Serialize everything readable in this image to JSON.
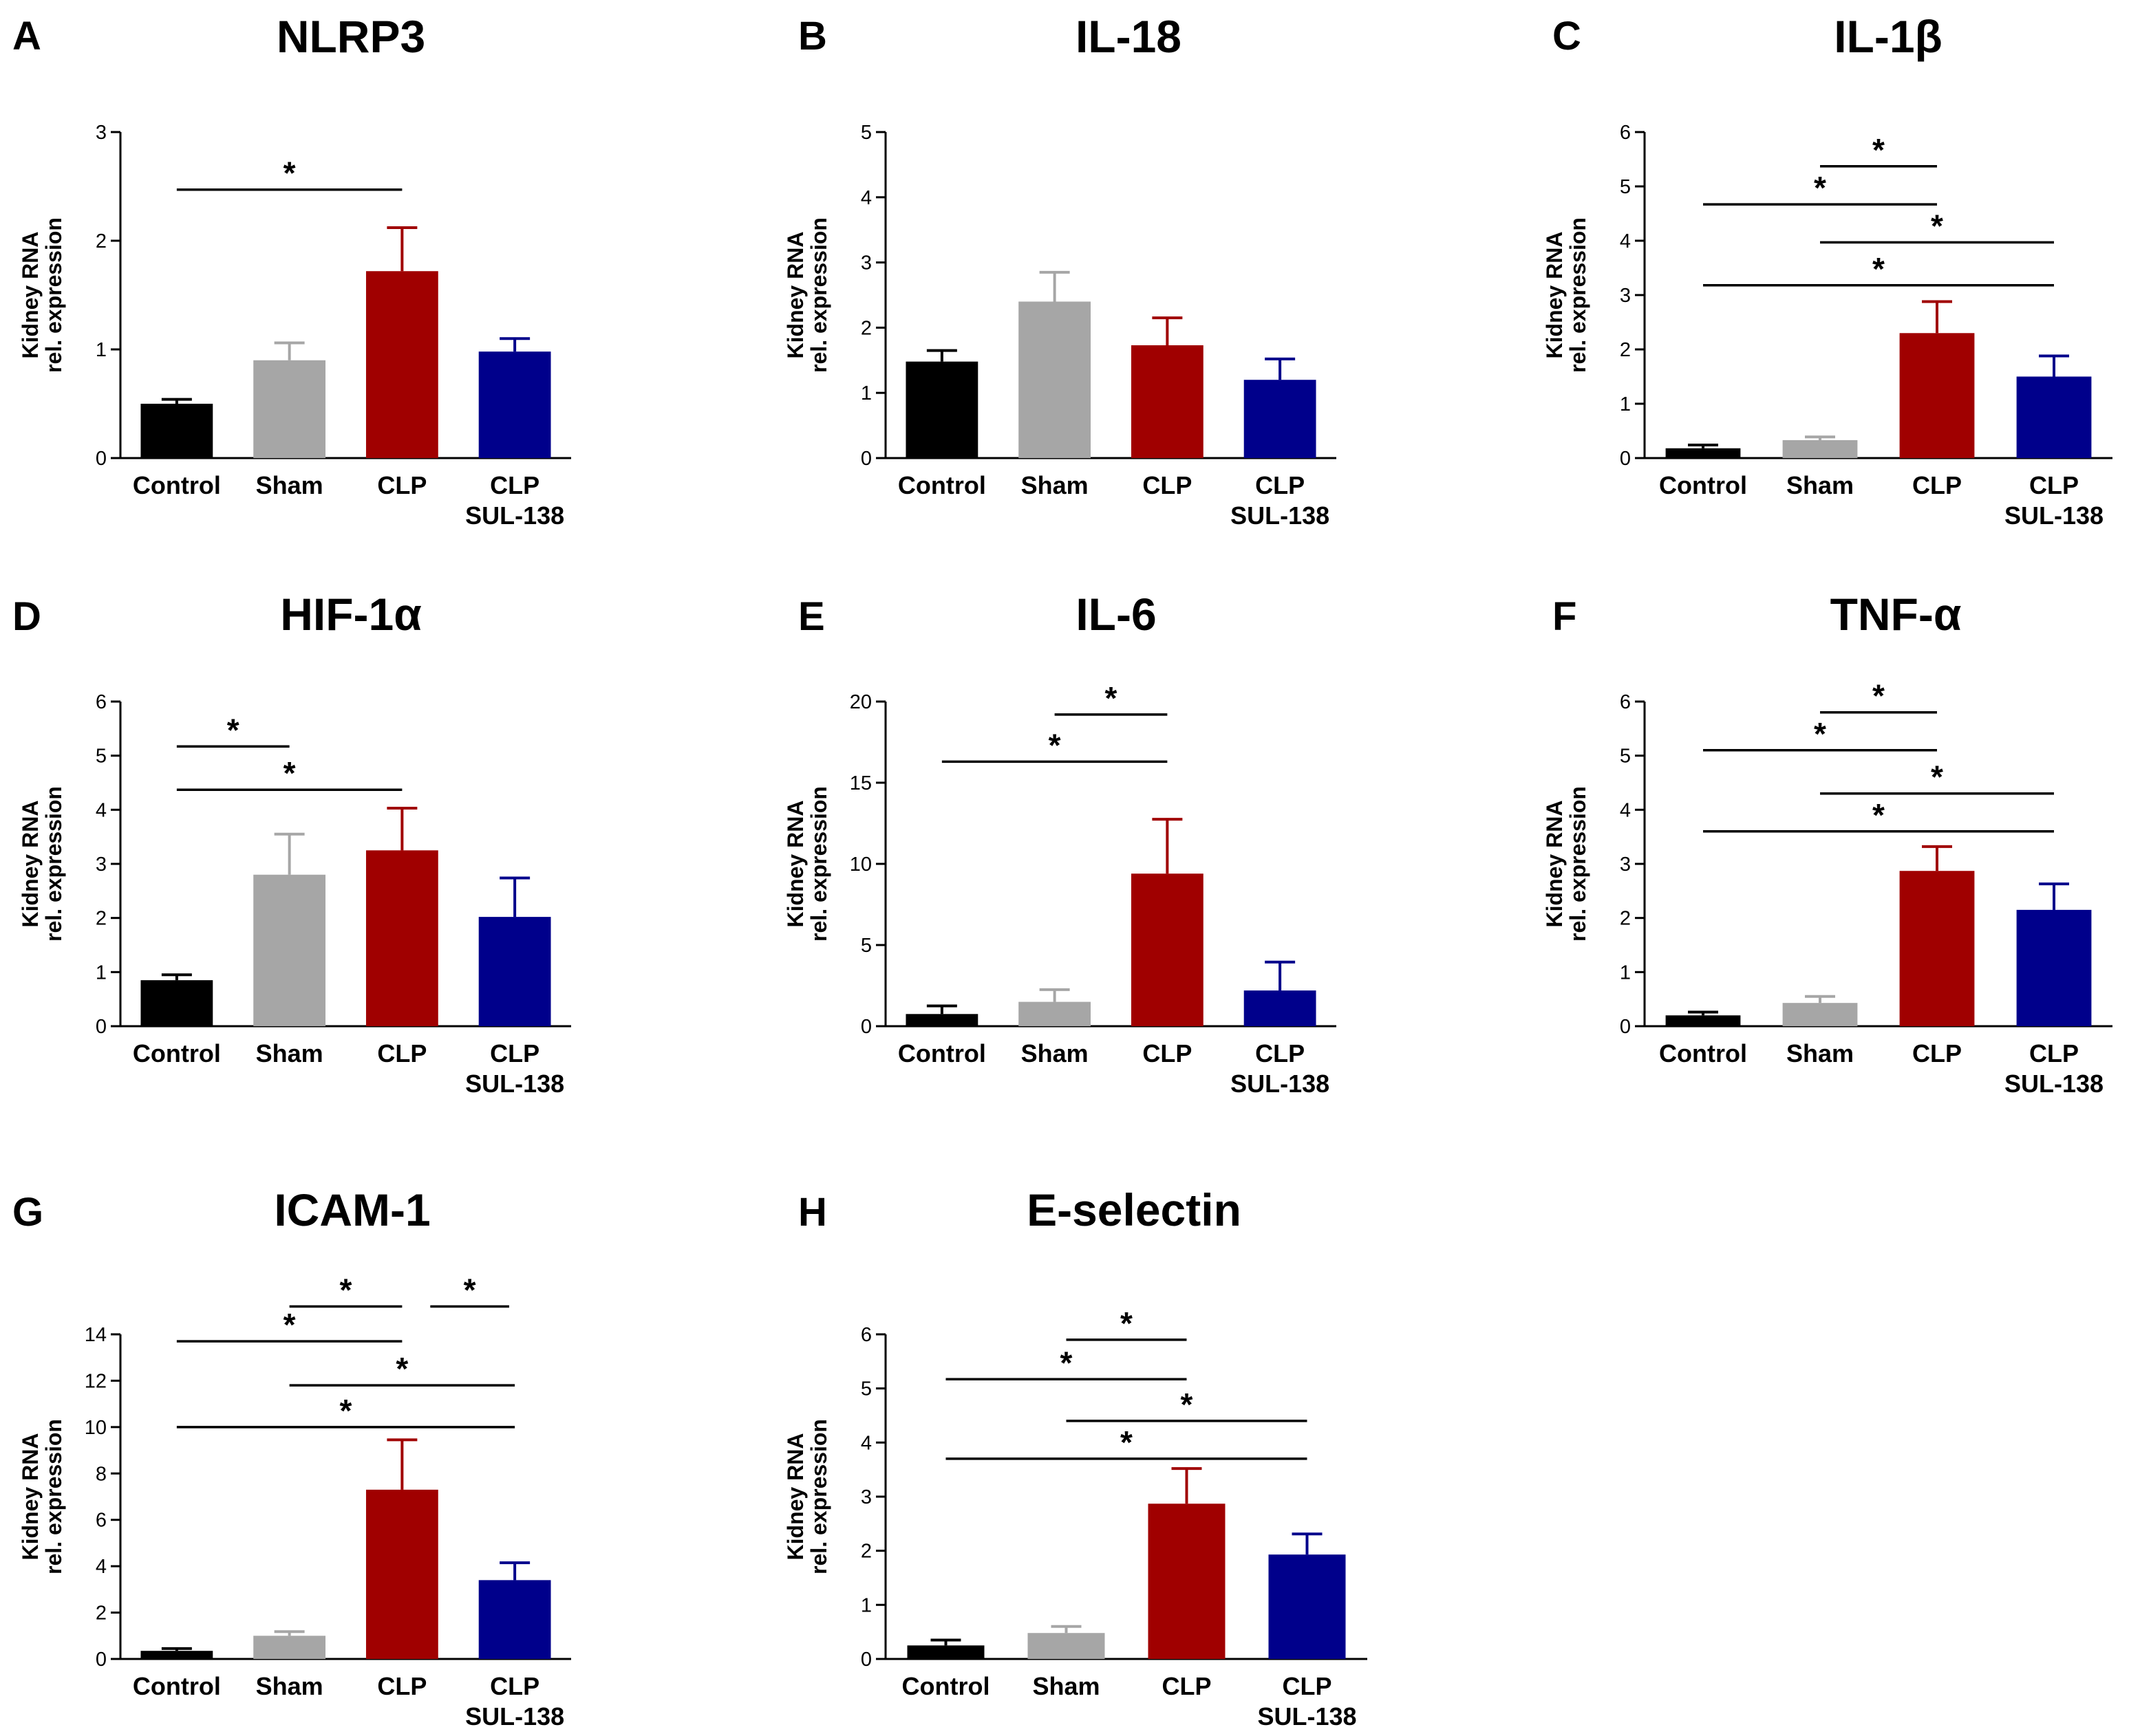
{
  "chart_data": [
    {
      "type": "bar",
      "letter": "A",
      "title": "NLRP3",
      "ylabel": [
        "Kidney RNA",
        "rel. expression"
      ],
      "categories": [
        [
          "Control"
        ],
        [
          "Sham"
        ],
        [
          "CLP"
        ],
        [
          "CLP",
          "SUL-138"
        ]
      ],
      "values": [
        0.5,
        0.9,
        1.72,
        0.98
      ],
      "errors": [
        0.04,
        0.16,
        0.4,
        0.12
      ],
      "colors": [
        "#000000",
        "#a6a6a6",
        "#a00000",
        "#00008b"
      ],
      "ylim": [
        0,
        3
      ],
      "yticks": [
        0,
        1,
        2,
        3
      ],
      "significance": [
        {
          "from": 0,
          "to": 2,
          "y": 2.47,
          "label": "*"
        }
      ]
    },
    {
      "type": "bar",
      "letter": "B",
      "title": "IL-18",
      "ylabel": [
        "Kidney RNA",
        "rel. expression"
      ],
      "categories": [
        [
          "Control"
        ],
        [
          "Sham"
        ],
        [
          "CLP"
        ],
        [
          "CLP",
          "SUL-138"
        ]
      ],
      "values": [
        1.48,
        2.4,
        1.73,
        1.2
      ],
      "errors": [
        0.17,
        0.45,
        0.42,
        0.32
      ],
      "colors": [
        "#000000",
        "#a6a6a6",
        "#a00000",
        "#00008b"
      ],
      "ylim": [
        0,
        5
      ],
      "yticks": [
        0,
        1,
        2,
        3,
        4,
        5
      ],
      "significance": []
    },
    {
      "type": "bar",
      "letter": "C",
      "title": "IL-1β",
      "ylabel": [
        "Kidney RNA",
        "rel. expression"
      ],
      "categories": [
        [
          "Control"
        ],
        [
          "Sham"
        ],
        [
          "CLP"
        ],
        [
          "CLP",
          "SUL-138"
        ]
      ],
      "values": [
        0.18,
        0.33,
        2.3,
        1.5
      ],
      "errors": [
        0.06,
        0.06,
        0.58,
        0.38
      ],
      "colors": [
        "#000000",
        "#a6a6a6",
        "#a00000",
        "#00008b"
      ],
      "ylim": [
        0,
        6
      ],
      "yticks": [
        0,
        1,
        2,
        3,
        4,
        5,
        6
      ],
      "significance": [
        {
          "from": 1,
          "to": 2,
          "y": 5.37,
          "label": "*"
        },
        {
          "from": 0,
          "to": 2,
          "y": 4.67,
          "label": "*"
        },
        {
          "from": 1,
          "to": 3,
          "y": 3.97,
          "label": "*"
        },
        {
          "from": 0,
          "to": 3,
          "y": 3.18,
          "label": "*"
        }
      ]
    },
    {
      "type": "bar",
      "letter": "D",
      "title": "HIF-1α",
      "ylabel": [
        "Kidney RNA",
        "rel. expression"
      ],
      "categories": [
        [
          "Control"
        ],
        [
          "Sham"
        ],
        [
          "CLP"
        ],
        [
          "CLP",
          "SUL-138"
        ]
      ],
      "values": [
        0.85,
        2.8,
        3.25,
        2.02
      ],
      "errors": [
        0.1,
        0.75,
        0.78,
        0.72
      ],
      "colors": [
        "#000000",
        "#a6a6a6",
        "#a00000",
        "#00008b"
      ],
      "ylim": [
        0,
        6
      ],
      "yticks": [
        0,
        1,
        2,
        3,
        4,
        5,
        6
      ],
      "significance": [
        {
          "from": 0,
          "to": 1,
          "y": 5.17,
          "label": "*"
        },
        {
          "from": 0,
          "to": 2,
          "y": 4.37,
          "label": "*"
        }
      ]
    },
    {
      "type": "bar",
      "letter": "E",
      "title": "IL-6",
      "ylabel": [
        "Kidney RNA",
        "rel. expression"
      ],
      "categories": [
        [
          "Control"
        ],
        [
          "Sham"
        ],
        [
          "CLP"
        ],
        [
          "CLP",
          "SUL-138"
        ]
      ],
      "values": [
        0.75,
        1.5,
        9.4,
        2.2
      ],
      "errors": [
        0.5,
        0.75,
        3.35,
        1.75
      ],
      "colors": [
        "#000000",
        "#a6a6a6",
        "#a00000",
        "#00008b"
      ],
      "ylim": [
        0,
        20
      ],
      "yticks": [
        0,
        5,
        10,
        15,
        20
      ],
      "significance": [
        {
          "from": 1,
          "to": 2,
          "y": 19.2,
          "label": "*"
        },
        {
          "from": 0,
          "to": 2,
          "y": 16.3,
          "label": "*"
        }
      ]
    },
    {
      "type": "bar",
      "letter": "F",
      "title": "TNF-α",
      "ylabel": [
        "Kidney RNA",
        "rel. expression"
      ],
      "categories": [
        [
          "Control"
        ],
        [
          "Sham"
        ],
        [
          "CLP"
        ],
        [
          "CLP",
          "SUL-138"
        ]
      ],
      "values": [
        0.2,
        0.43,
        2.87,
        2.15
      ],
      "errors": [
        0.06,
        0.12,
        0.45,
        0.48
      ],
      "colors": [
        "#000000",
        "#a6a6a6",
        "#a00000",
        "#00008b"
      ],
      "ylim": [
        0,
        6
      ],
      "yticks": [
        0,
        1,
        2,
        3,
        4,
        5,
        6
      ],
      "significance": [
        {
          "from": 1,
          "to": 2,
          "y": 5.8,
          "label": "*"
        },
        {
          "from": 0,
          "to": 2,
          "y": 5.1,
          "label": "*"
        },
        {
          "from": 1,
          "to": 3,
          "y": 4.3,
          "label": "*"
        },
        {
          "from": 0,
          "to": 3,
          "y": 3.6,
          "label": "*"
        }
      ]
    },
    {
      "type": "bar",
      "letter": "G",
      "title": "ICAM-1",
      "ylabel": [
        "Kidney RNA",
        "rel. expression"
      ],
      "categories": [
        [
          "Control"
        ],
        [
          "Sham"
        ],
        [
          "CLP"
        ],
        [
          "CLP",
          "SUL-138"
        ]
      ],
      "values": [
        0.35,
        1.0,
        7.3,
        3.4
      ],
      "errors": [
        0.1,
        0.18,
        2.15,
        0.75
      ],
      "colors": [
        "#000000",
        "#a6a6a6",
        "#a00000",
        "#00008b"
      ],
      "ylim": [
        0,
        14
      ],
      "yticks": [
        0,
        2,
        4,
        6,
        8,
        10,
        12,
        14
      ],
      "significance": [
        {
          "from": 1,
          "to": 2,
          "y": 15.2,
          "label": "*"
        },
        {
          "from": 2,
          "to": 3,
          "y": 15.2,
          "label": "*",
          "inset": true
        },
        {
          "from": 0,
          "to": 2,
          "y": 13.7,
          "label": "*"
        },
        {
          "from": 1,
          "to": 3,
          "y": 11.8,
          "label": "*"
        },
        {
          "from": 0,
          "to": 3,
          "y": 10.0,
          "label": "*"
        }
      ]
    },
    {
      "type": "bar",
      "letter": "H",
      "title": "E-selectin",
      "ylabel": [
        "Kidney RNA",
        "rel. expression"
      ],
      "categories": [
        [
          "Control"
        ],
        [
          "Sham"
        ],
        [
          "CLP"
        ],
        [
          "CLP",
          "SUL-138"
        ]
      ],
      "values": [
        0.25,
        0.48,
        2.87,
        1.93
      ],
      "errors": [
        0.1,
        0.12,
        0.65,
        0.38
      ],
      "colors": [
        "#000000",
        "#a6a6a6",
        "#a00000",
        "#00008b"
      ],
      "ylim": [
        0,
        6
      ],
      "yticks": [
        0,
        1,
        2,
        3,
        4,
        5,
        6
      ],
      "significance": [
        {
          "from": 1,
          "to": 2,
          "y": 5.9,
          "label": "*"
        },
        {
          "from": 0,
          "to": 2,
          "y": 5.17,
          "label": "*"
        },
        {
          "from": 1,
          "to": 3,
          "y": 4.4,
          "label": "*"
        },
        {
          "from": 0,
          "to": 3,
          "y": 3.7,
          "label": "*"
        }
      ]
    }
  ]
}
